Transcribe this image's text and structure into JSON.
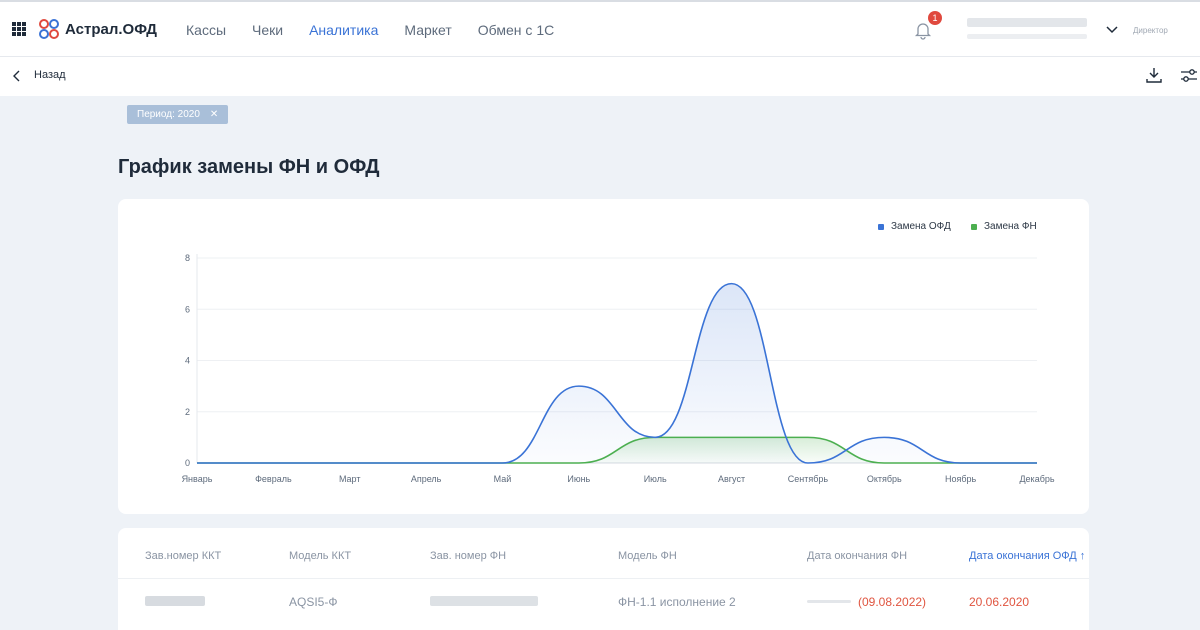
{
  "header": {
    "brand": "Астрал.ОФД",
    "nav": [
      {
        "label": "Кассы",
        "active": false
      },
      {
        "label": "Чеки",
        "active": false
      },
      {
        "label": "Аналитика",
        "active": true
      },
      {
        "label": "Маркет",
        "active": false
      },
      {
        "label": "Обмен с 1С",
        "active": false
      }
    ],
    "notification_count": "1",
    "role": "Директор"
  },
  "toolbar": {
    "back_label": "Назад"
  },
  "filter_chip": {
    "label": "Период: 2020"
  },
  "page_title": "График замены ФН и ОФД",
  "chart_data": {
    "type": "area",
    "categories": [
      "Январь",
      "Февраль",
      "Март",
      "Апрель",
      "Май",
      "Июнь",
      "Июль",
      "Август",
      "Сентябрь",
      "Октябрь",
      "Ноябрь",
      "Декабрь"
    ],
    "series": [
      {
        "name": "Замена ОФД",
        "color": "#3a73d6",
        "values": [
          0,
          0,
          0,
          0,
          0,
          3,
          1,
          7,
          0,
          1,
          0,
          0
        ]
      },
      {
        "name": "Замена ФН",
        "color": "#4caf50",
        "values": [
          0,
          0,
          0,
          0,
          0,
          0,
          1,
          1,
          1,
          0,
          0,
          0
        ]
      }
    ],
    "ylim": [
      0,
      8
    ],
    "yticks": [
      "0",
      "2",
      "4",
      "6",
      "8"
    ],
    "grid": true,
    "legend": "top-right"
  },
  "table": {
    "headers": [
      "Зав.номер ККТ",
      "Модель ККТ",
      "Зав. номер ФН",
      "Модель ФН",
      "Дата окончания ФН",
      "Дата окончания ОФД ↑"
    ],
    "rows": [
      {
        "model_kkt": "AQSI5-Ф",
        "model_fn": "ФН-1.1 исполнение 2",
        "fn_end": "(09.08.2022)",
        "ofd_end": "20.06.2020"
      }
    ]
  }
}
